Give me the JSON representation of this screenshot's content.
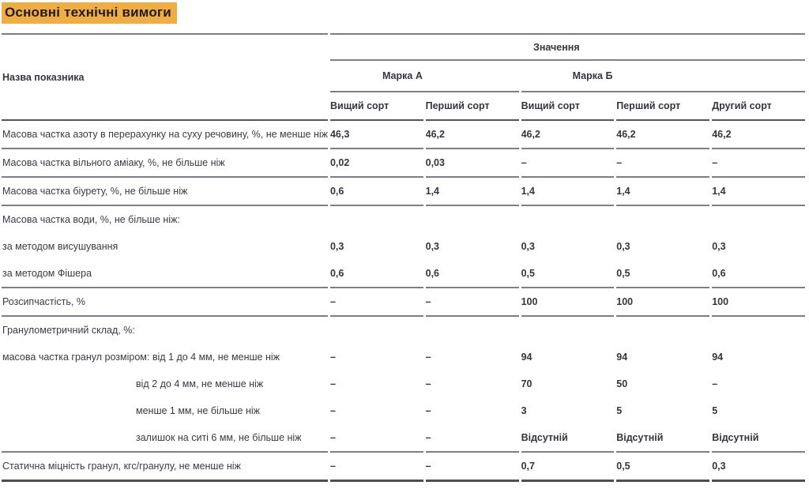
{
  "title": "Основні технічні вимоги",
  "colors": {
    "title_highlight": "#f0ad41",
    "title_text": "#1c1c28",
    "body_text": "#3a3a45",
    "rule_normal": "#7d7d85",
    "rule_strong": "#55555c"
  },
  "table": {
    "name_header": "Назва показника",
    "value_header": "Значення",
    "groups": [
      {
        "label": "Марка А",
        "span": 2
      },
      {
        "label": "Марка Б",
        "span": 3
      }
    ],
    "sort_headers": [
      "Вищий сорт",
      "Перший сорт",
      "Вищий сорт",
      "Перший сорт",
      "Другий сорт"
    ],
    "rows": [
      {
        "label": "Масова частка азоту в перерахунку на суху речовину, %, не менше ніж",
        "values": [
          "46,3",
          "46,2",
          "46,2",
          "46,2",
          "46,2"
        ]
      },
      {
        "label": "Масова частка вільного аміаку, %, не більше ніж",
        "values": [
          "0,02",
          "0,03",
          "–",
          "–",
          "–"
        ]
      },
      {
        "label": "Масова частка біурету, %, не більше ніж",
        "values": [
          "0,6",
          "1,4",
          "1,4",
          "1,4",
          "1,4"
        ]
      },
      {
        "label": "Масова частка води, %, не більше ніж:",
        "values": [
          "",
          "",
          "",
          "",
          ""
        ]
      },
      {
        "label": "за методом висушування",
        "values": [
          "0,3",
          "0,3",
          "0,3",
          "0,3",
          "0,3"
        ]
      },
      {
        "label": "за методом Фішера",
        "values": [
          "0,6",
          "0,6",
          "0,5",
          "0,5",
          "0,6"
        ]
      },
      {
        "label": "Розсипчастість, %",
        "values": [
          "–",
          "–",
          "100",
          "100",
          "100"
        ]
      },
      {
        "label": "Гранулометричний склад, %:",
        "values": [
          "",
          "",
          "",
          "",
          ""
        ]
      },
      {
        "label": "масова частка гранул розміром: від 1 до 4 мм, не менше ніж",
        "values": [
          "–",
          "–",
          "94",
          "94",
          "94"
        ]
      },
      {
        "label": "від 2 до 4 мм, не менше ніж",
        "values": [
          "–",
          "–",
          "70",
          "50",
          "–"
        ]
      },
      {
        "label": "менше 1 мм, не більше ніж",
        "values": [
          "–",
          "–",
          "3",
          "5",
          "5"
        ]
      },
      {
        "label": "залишок на ситі 6 мм, не більше ніж",
        "values": [
          "–",
          "–",
          "Відсутній",
          "Відсутній",
          "Відсутній"
        ]
      },
      {
        "label": "Статична міцність гранул, кгс/гранулу, не менше ніж",
        "values": [
          "–",
          "–",
          "0,7",
          "0,5",
          "0,3"
        ]
      }
    ]
  }
}
